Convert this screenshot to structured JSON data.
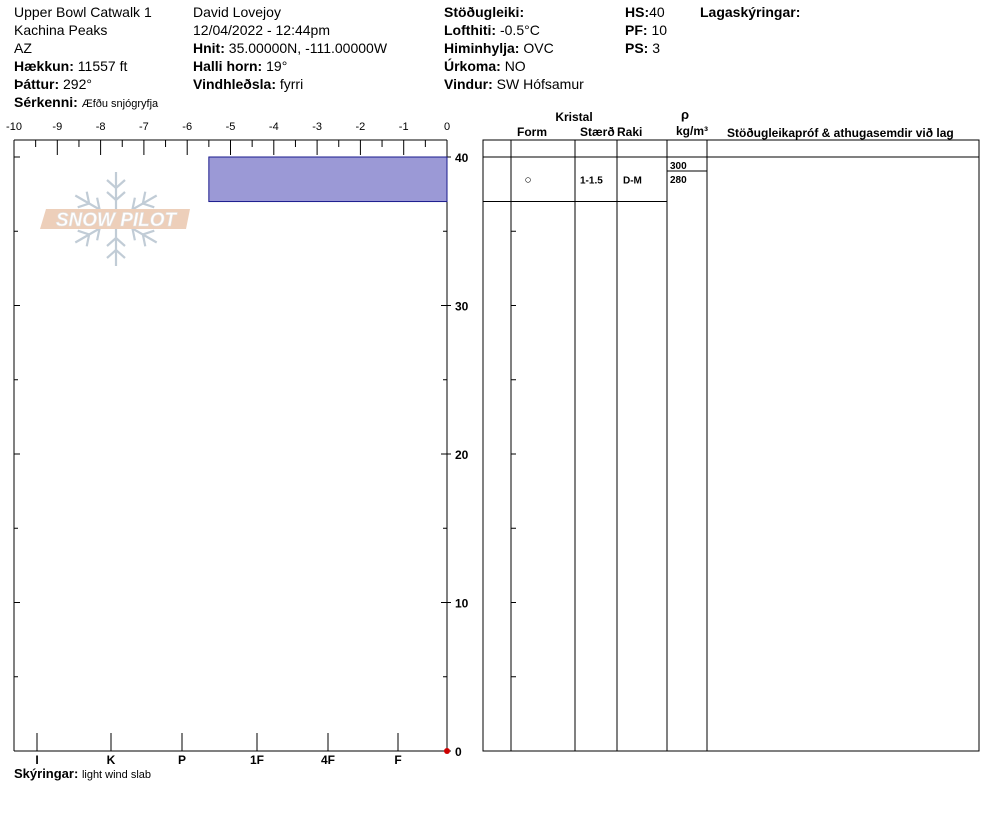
{
  "header": {
    "location": "Upper Bowl Catwalk 1",
    "range": "Kachina Peaks",
    "state": "AZ",
    "elevation": {
      "label": "Hækkun:",
      "value": "11557 ft"
    },
    "aspect": {
      "label": "Þáttur:",
      "value": "292°"
    },
    "features": {
      "label": "Sérkenni:",
      "value": "Æfðu snjógryfja"
    },
    "observer": "David Lovejoy",
    "datetime": "12/04/2022 - 12:44pm",
    "coords": {
      "label": "Hnit:",
      "value": "35.00000N, -111.00000W"
    },
    "slope": {
      "label": "Halli horn:",
      "value": "19°"
    },
    "wind_loading": {
      "label": "Vindhleðsla:",
      "value": "fyrri"
    },
    "stability": {
      "label": "Stöðugleiki:",
      "value": ""
    },
    "air_temp": {
      "label": "Lofthiti:",
      "value": "-0.5°C"
    },
    "sky": {
      "label": "Himinhylja:",
      "value": "OVC"
    },
    "precip": {
      "label": "Úrkoma:",
      "value": "NO"
    },
    "wind": {
      "label": "Vindur:",
      "value": "SW Hófsamur"
    },
    "hs": {
      "label": "HS:",
      "value": "40"
    },
    "pf": {
      "label": "PF:",
      "value": "10"
    },
    "ps": {
      "label": "PS:",
      "value": "3"
    },
    "layer_notes_label": "Lagaskýringar:"
  },
  "logo_text": "SNOW PILOT",
  "footer": {
    "label": "Skýringar:",
    "value": "light wind slab"
  },
  "chart_data": {
    "type": "snow-profile",
    "temperature_axis": {
      "ticks": [
        "-10",
        "-9",
        "-8",
        "-7",
        "-6",
        "-5",
        "-4",
        "-3",
        "-2",
        "-1",
        "0"
      ],
      "range": [
        -10,
        0
      ]
    },
    "depth_axis": {
      "ticks": [
        "40",
        "30",
        "20",
        "10",
        "0"
      ],
      "range": [
        0,
        40
      ]
    },
    "hardness_axis": {
      "ticks": [
        "I",
        "K",
        "P",
        "1F",
        "4F",
        "F"
      ]
    },
    "layers": [
      {
        "top": 40,
        "bottom": 37,
        "temperature_extent": -5.5,
        "form": "○",
        "size": "1-1.5",
        "moisture": "D-M",
        "densities": [
          "300",
          "280"
        ]
      }
    ],
    "surface_temperature": {
      "depth": 0,
      "temp": 0
    },
    "colors": {
      "layer_fill": "#9b99d6",
      "layer_stroke": "#1a1a8c",
      "temp_point": "#cc0000"
    },
    "table_headers": {
      "crystal": "Kristal",
      "form": "Form",
      "size": "Stærð",
      "moisture": "Raki",
      "rho": "ρ",
      "density_unit": "kg/m³",
      "tests": "Stöðugleikapróf & athugasemdir við lag"
    }
  }
}
